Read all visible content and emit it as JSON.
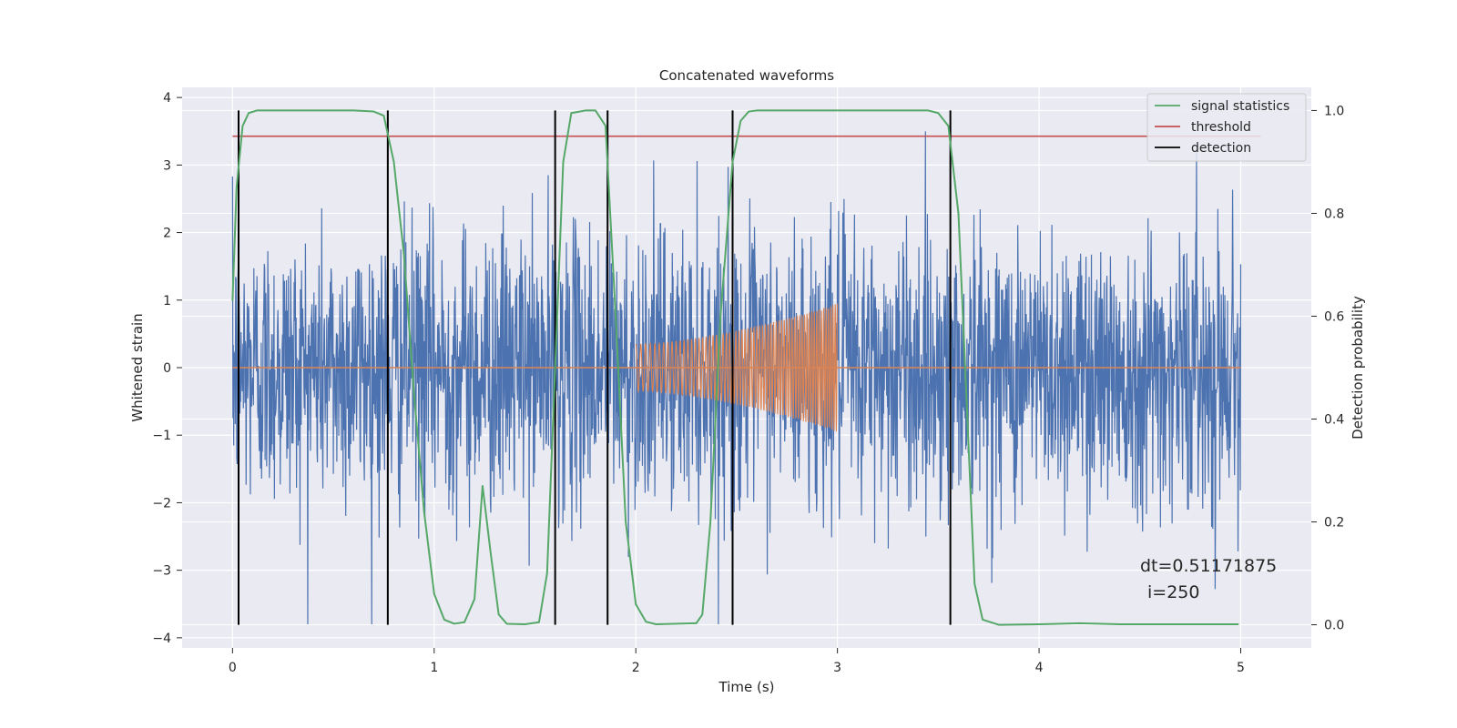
{
  "chart_data": {
    "type": "line",
    "title": "Concatenated waveforms",
    "xlabel": "Time (s)",
    "ylabel": "Whitened strain",
    "y2label": "Detection probability",
    "xlim": [
      -0.25,
      5.35
    ],
    "ylim": [
      -4.15,
      4.15
    ],
    "y2lim": [
      -0.045,
      1.045
    ],
    "xticks": [
      0,
      1,
      2,
      3,
      4,
      5
    ],
    "yticks": [
      -4,
      -3,
      -2,
      -1,
      0,
      1,
      2,
      3,
      4
    ],
    "y2ticks": [
      0.0,
      0.2,
      0.4,
      0.6,
      0.8,
      1.0
    ],
    "grid": true,
    "legend": {
      "placement": "top-right",
      "entries": [
        {
          "label": "signal statistics",
          "color": "#55a868"
        },
        {
          "label": "threshold",
          "color": "#c44e52"
        },
        {
          "label": "detection",
          "color": "#000000"
        }
      ]
    },
    "colors": {
      "background": "#eaeaf2",
      "strain": "#4c72b0",
      "template": "#dd8452",
      "signal_statistics": "#55a868",
      "threshold": "#c44e52",
      "detection": "#000000"
    },
    "strain_noise": {
      "x_range": [
        0,
        5
      ],
      "typical_amplitude": 1.2,
      "peak_amplitude": 3.8
    },
    "template_waveform": {
      "x_range": [
        2.0,
        3.0
      ],
      "start_amplitude": 0.35,
      "end_amplitude": 0.95
    },
    "threshold": 0.95,
    "detections_x": [
      0.03,
      0.77,
      1.6,
      1.86,
      2.48,
      3.56
    ],
    "signal_statistics": {
      "x": [
        0,
        0.02,
        0.05,
        0.08,
        0.12,
        0.2,
        0.6,
        0.7,
        0.75,
        0.8,
        0.85,
        0.9,
        0.95,
        1.0,
        1.05,
        1.1,
        1.15,
        1.2,
        1.24,
        1.28,
        1.32,
        1.36,
        1.45,
        1.52,
        1.56,
        1.6,
        1.64,
        1.68,
        1.75,
        1.8,
        1.85,
        1.9,
        1.95,
        2.0,
        2.05,
        2.1,
        2.3,
        2.33,
        2.37,
        2.42,
        2.48,
        2.52,
        2.56,
        2.6,
        2.7,
        3.45,
        3.5,
        3.55,
        3.6,
        3.65,
        3.68,
        3.72,
        3.8,
        4.0,
        4.2,
        4.4,
        4.99
      ],
      "y": [
        0.63,
        0.85,
        0.97,
        0.995,
        1.0,
        1.0,
        1.0,
        0.998,
        0.99,
        0.9,
        0.72,
        0.45,
        0.22,
        0.06,
        0.01,
        0.002,
        0.005,
        0.05,
        0.27,
        0.14,
        0.02,
        0.002,
        0.001,
        0.005,
        0.1,
        0.5,
        0.9,
        0.995,
        1.0,
        1.0,
        0.97,
        0.6,
        0.2,
        0.04,
        0.006,
        0.001,
        0.003,
        0.02,
        0.2,
        0.6,
        0.9,
        0.98,
        0.998,
        1.0,
        1.0,
        1.0,
        0.995,
        0.97,
        0.8,
        0.35,
        0.08,
        0.01,
        0.0,
        0.001,
        0.003,
        0.001,
        0.001
      ]
    }
  },
  "annotation": {
    "line1": "dt=0.51171875",
    "line2": "i=250"
  }
}
